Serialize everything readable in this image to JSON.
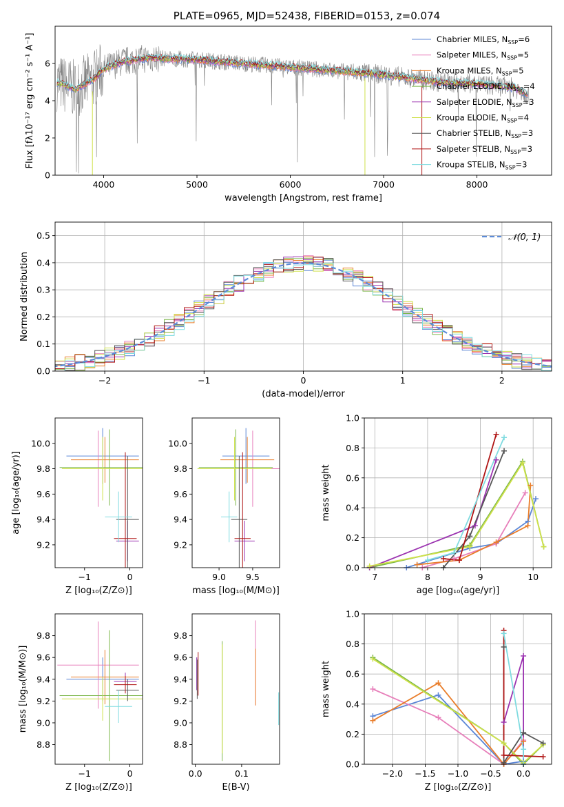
{
  "colors": {
    "Chabrier MILES": "#5b86d6",
    "Salpeter MILES": "#e77fba",
    "Kroupa MILES": "#e97d2a",
    "Chabrier ELODIE": "#7ab648",
    "Salpeter ELODIE": "#9b33b0",
    "Kroupa ELODIE": "#cfe14a",
    "Chabrier STELIB": "#555555",
    "Salpeter STELIB": "#b01515",
    "Kroupa STELIB": "#7fdbe0",
    "data": "#7f7f7f",
    "normal": "#5b8bd8"
  },
  "chart_data": [
    {
      "id": "spectrum",
      "type": "line",
      "title": "PLATE=0965, MJD=52438, FIBERID=0153, z=0.074",
      "xlabel": "wavelength [Angstrom, rest frame]",
      "ylabel": "Flux [fλ10⁻¹⁷ erg cm⁻² s⁻¹ A⁻¹]",
      "xlim": [
        3480,
        8800
      ],
      "ylim": [
        0,
        8
      ],
      "xticks": [
        4000,
        5000,
        6000,
        7000,
        8000
      ],
      "yticks": [
        0,
        2,
        4,
        6
      ],
      "legend_position": "upper right",
      "legend": [
        {
          "name": "Chabrier MILES",
          "nssp": "6"
        },
        {
          "name": "Salpeter MILES",
          "nssp": "5"
        },
        {
          "name": "Kroupa MILES",
          "nssp": "5"
        },
        {
          "name": "Chabrier ELODIE",
          "nssp": "4"
        },
        {
          "name": "Salpeter ELODIE",
          "nssp": "3"
        },
        {
          "name": "Kroupa ELODIE",
          "nssp": "4"
        },
        {
          "name": "Chabrier STELIB",
          "nssp": "3"
        },
        {
          "name": "Salpeter STELIB",
          "nssp": "3"
        },
        {
          "name": "Kroupa STELIB",
          "nssp": "3"
        }
      ],
      "continuum": {
        "x": [
          3500,
          3700,
          3900,
          4000,
          4200,
          4500,
          5000,
          5500,
          6000,
          6500,
          7000,
          7300,
          7600,
          8000,
          8400,
          8550
        ],
        "y": [
          5.0,
          4.6,
          5.2,
          5.7,
          6.1,
          6.3,
          6.2,
          6.0,
          5.8,
          5.6,
          5.4,
          5.2,
          5.0,
          4.9,
          4.7,
          4.3
        ]
      }
    },
    {
      "id": "residuals",
      "type": "histogram",
      "xlabel": "(data-model)/error",
      "ylabel": "Normed distribution",
      "xlim": [
        -2.5,
        2.5
      ],
      "ylim": [
        0,
        0.55
      ],
      "xticks": [
        -2,
        -1,
        0,
        1,
        2
      ],
      "yticks": [
        0.0,
        0.1,
        0.2,
        0.3,
        0.4,
        0.5
      ],
      "grid": true,
      "legend_position": "upper right",
      "normal_label": "𝒩(0, 1)"
    },
    {
      "id": "age_vs_Z",
      "type": "errorbar",
      "xlabel": "Z [log₁₀(Z/Z⊙)]",
      "ylabel": "age  [log₁₀(age/yr)]",
      "xlim": [
        -1.65,
        0.28
      ],
      "ylim": [
        9.02,
        10.2
      ],
      "xticks": [
        -1,
        0
      ],
      "yticks": [
        9.2,
        9.4,
        9.6,
        9.8,
        10.0
      ],
      "points": [
        {
          "series": "Chabrier MILES",
          "x": -0.6,
          "y": 9.9,
          "xerr": 0.8,
          "yerr": 0.22
        },
        {
          "series": "Salpeter MILES",
          "x": -0.7,
          "y": 9.8,
          "xerr": 0.4,
          "yerr": 0.3
        },
        {
          "series": "Kroupa MILES",
          "x": -0.55,
          "y": 9.87,
          "xerr": 0.75,
          "yerr": 0.18
        },
        {
          "series": "Chabrier ELODIE",
          "x": -0.45,
          "y": 9.81,
          "xerr": 1.1,
          "yerr": 0.3
        },
        {
          "series": "Salpeter ELODIE",
          "x": -0.05,
          "y": 9.23,
          "xerr": 0.25,
          "yerr": 0.16
        },
        {
          "series": "Kroupa ELODIE",
          "x": -0.6,
          "y": 9.8,
          "xerr": 0.9,
          "yerr": 0.25
        },
        {
          "series": "Chabrier STELIB",
          "x": -0.05,
          "y": 9.4,
          "xerr": 0.25,
          "yerr": 0.5
        },
        {
          "series": "Salpeter STELIB",
          "x": -0.1,
          "y": 9.25,
          "xerr": 0.25,
          "yerr": 0.68
        },
        {
          "series": "Kroupa STELIB",
          "x": -0.25,
          "y": 9.42,
          "xerr": 0.3,
          "yerr": 0.2
        }
      ]
    },
    {
      "id": "age_vs_mass",
      "type": "errorbar",
      "xlabel": "mass [log₁₀(M/M⊙)]",
      "ylabel": "",
      "xlim": [
        8.6,
        9.9
      ],
      "ylim": [
        9.02,
        10.2
      ],
      "xticks": [
        9.0,
        9.5
      ],
      "yticks": [
        9.2,
        9.4,
        9.6,
        9.8,
        10.0
      ],
      "points": [
        {
          "series": "Chabrier MILES",
          "x": 9.4,
          "y": 9.9,
          "xerr": 0.35,
          "yerr": 0.22
        },
        {
          "series": "Salpeter MILES",
          "x": 9.5,
          "y": 9.8,
          "xerr": 0.4,
          "yerr": 0.3
        },
        {
          "series": "Kroupa MILES",
          "x": 9.42,
          "y": 9.87,
          "xerr": 0.4,
          "yerr": 0.18
        },
        {
          "series": "Chabrier ELODIE",
          "x": 9.25,
          "y": 9.81,
          "xerr": 0.55,
          "yerr": 0.3
        },
        {
          "series": "Salpeter ELODIE",
          "x": 9.38,
          "y": 9.23,
          "xerr": 0.15,
          "yerr": 0.16
        },
        {
          "series": "Kroupa ELODIE",
          "x": 9.23,
          "y": 9.8,
          "xerr": 0.55,
          "yerr": 0.25
        },
        {
          "series": "Chabrier STELIB",
          "x": 9.3,
          "y": 9.4,
          "xerr": 0.12,
          "yerr": 0.5
        },
        {
          "series": "Salpeter STELIB",
          "x": 9.35,
          "y": 9.25,
          "xerr": 0.12,
          "yerr": 0.68
        },
        {
          "series": "Kroupa STELIB",
          "x": 9.15,
          "y": 9.42,
          "xerr": 0.12,
          "yerr": 0.2
        }
      ]
    },
    {
      "id": "weight_vs_age",
      "type": "line",
      "xlabel": "age  [log₁₀(age/yr)]",
      "ylabel": "mass weight",
      "xlim": [
        6.8,
        10.35
      ],
      "ylim": [
        0,
        1
      ],
      "xticks": [
        7,
        8,
        9,
        10
      ],
      "yticks": [
        0.0,
        0.2,
        0.4,
        0.6,
        0.8,
        1.0
      ],
      "grid": true,
      "series": [
        {
          "name": "Chabrier MILES",
          "x": [
            7.6,
            8.8,
            9.3,
            9.9,
            10.05
          ],
          "y": [
            0.0,
            0.13,
            0.16,
            0.31,
            0.46
          ]
        },
        {
          "name": "Salpeter MILES",
          "x": [
            7.9,
            8.5,
            9.3,
            9.85
          ],
          "y": [
            0.0,
            0.06,
            0.16,
            0.5
          ]
        },
        {
          "name": "Kroupa MILES",
          "x": [
            7.8,
            8.6,
            9.3,
            9.9,
            9.95
          ],
          "y": [
            0.02,
            0.05,
            0.17,
            0.28,
            0.55
          ]
        },
        {
          "name": "Chabrier ELODIE",
          "x": [
            6.9,
            8.8,
            9.8,
            10.2
          ],
          "y": [
            0.0,
            0.15,
            0.71,
            0.14
          ]
        },
        {
          "name": "Salpeter ELODIE",
          "x": [
            6.9,
            8.9,
            9.3
          ],
          "y": [
            0.0,
            0.28,
            0.72
          ]
        },
        {
          "name": "Kroupa ELODIE",
          "x": [
            6.9,
            8.8,
            9.8,
            10.2
          ],
          "y": [
            0.01,
            0.14,
            0.7,
            0.14
          ]
        },
        {
          "name": "Chabrier STELIB",
          "x": [
            8.3,
            8.8,
            9.45
          ],
          "y": [
            0.0,
            0.21,
            0.78
          ]
        },
        {
          "name": "Salpeter STELIB",
          "x": [
            8.3,
            8.6,
            9.3
          ],
          "y": [
            0.06,
            0.05,
            0.89
          ]
        },
        {
          "name": "Kroupa STELIB",
          "x": [
            8.0,
            8.5,
            9.45
          ],
          "y": [
            0.05,
            0.1,
            0.87
          ]
        }
      ]
    },
    {
      "id": "mass_vs_Z",
      "type": "errorbar",
      "xlabel": "Z [log₁₀(Z/Z⊙)]",
      "ylabel": "mass [log₁₀(M/M⊙)]",
      "xlim": [
        -1.65,
        0.28
      ],
      "ylim": [
        8.62,
        10.0
      ],
      "xticks": [
        -1,
        0
      ],
      "yticks": [
        8.8,
        9.0,
        9.2,
        9.4,
        9.6,
        9.8
      ],
      "points": [
        {
          "series": "Chabrier MILES",
          "x": -0.6,
          "y": 9.4,
          "xerr": 0.8,
          "yerr": 0.2
        },
        {
          "series": "Salpeter MILES",
          "x": -0.7,
          "y": 9.53,
          "xerr": 0.9,
          "yerr": 0.4
        },
        {
          "series": "Kroupa MILES",
          "x": -0.55,
          "y": 9.42,
          "xerr": 0.75,
          "yerr": 0.25
        },
        {
          "series": "Chabrier ELODIE",
          "x": -0.45,
          "y": 9.25,
          "xerr": 1.1,
          "yerr": 0.6
        },
        {
          "series": "Salpeter ELODIE",
          "x": -0.1,
          "y": 9.38,
          "xerr": 0.25,
          "yerr": 0.08
        },
        {
          "series": "Kroupa ELODIE",
          "x": -0.6,
          "y": 9.22,
          "xerr": 0.9,
          "yerr": 0.2
        },
        {
          "series": "Chabrier STELIB",
          "x": -0.05,
          "y": 9.3,
          "xerr": 0.25,
          "yerr": 0.1
        },
        {
          "series": "Salpeter STELIB",
          "x": -0.1,
          "y": 9.35,
          "xerr": 0.25,
          "yerr": 0.08
        },
        {
          "series": "Kroupa STELIB",
          "x": -0.25,
          "y": 9.15,
          "xerr": 0.3,
          "yerr": 0.15
        }
      ]
    },
    {
      "id": "mass_vs_ebv",
      "type": "errorbar",
      "xlabel": "E(B-V)",
      "ylabel": "",
      "xlim": [
        -0.007,
        0.182
      ],
      "ylim": [
        8.62,
        10.0
      ],
      "xticks": [
        0.0,
        0.1
      ],
      "yticks": [
        8.8,
        9.0,
        9.2,
        9.4,
        9.6,
        9.8
      ],
      "points": [
        {
          "series": "Chabrier MILES",
          "x": 0.003,
          "y": 9.45,
          "xerr": 0,
          "yerr": 0.15
        },
        {
          "series": "Salpeter MILES",
          "x": 0.13,
          "y": 9.55,
          "xerr": 0,
          "yerr": 0.39
        },
        {
          "series": "Kroupa MILES",
          "x": 0.13,
          "y": 9.42,
          "xerr": 0,
          "yerr": 0.26
        },
        {
          "series": "Chabrier ELODIE",
          "x": 0.058,
          "y": 9.2,
          "xerr": 0,
          "yerr": 0.55
        },
        {
          "series": "Salpeter ELODIE",
          "x": 0.003,
          "y": 9.45,
          "xerr": 0,
          "yerr": 0.15
        },
        {
          "series": "Kroupa ELODIE",
          "x": 0.058,
          "y": 9.22,
          "xerr": 0,
          "yerr": 0.5
        },
        {
          "series": "Chabrier STELIB",
          "x": 0.004,
          "y": 9.4,
          "xerr": 0,
          "yerr": 0.18
        },
        {
          "series": "Salpeter STELIB",
          "x": 0.006,
          "y": 9.45,
          "xerr": 0,
          "yerr": 0.2
        },
        {
          "series": "Kroupa STELIB",
          "x": 0.18,
          "y": 9.13,
          "xerr": 0,
          "yerr": 0.15
        }
      ]
    },
    {
      "id": "weight_vs_Z",
      "type": "line",
      "xlabel": "Z [log₁₀(Z/Z⊙)]",
      "ylabel": "mass weight",
      "xlim": [
        -2.43,
        0.43
      ],
      "ylim": [
        0,
        1
      ],
      "xticks": [
        -2.0,
        -1.5,
        -1.0,
        -0.5,
        0.0
      ],
      "yticks": [
        0.0,
        0.2,
        0.4,
        0.6,
        0.8,
        1.0
      ],
      "grid": true,
      "series": [
        {
          "name": "Chabrier MILES",
          "x": [
            -2.3,
            -1.3,
            -0.3,
            0.0
          ],
          "y": [
            0.32,
            0.46,
            0.0,
            0.02
          ]
        },
        {
          "name": "Salpeter MILES",
          "x": [
            -2.3,
            -1.3,
            -0.3,
            0.0
          ],
          "y": [
            0.5,
            0.31,
            0.0,
            0.16
          ]
        },
        {
          "name": "Kroupa MILES",
          "x": [
            -2.3,
            -1.3,
            -0.3,
            0.0
          ],
          "y": [
            0.29,
            0.54,
            0.0,
            0.15
          ]
        },
        {
          "name": "Chabrier ELODIE",
          "x": [
            -2.3,
            -0.3,
            0.0,
            0.3
          ],
          "y": [
            0.71,
            0.14,
            0.0,
            0.13
          ]
        },
        {
          "name": "Salpeter ELODIE",
          "x": [
            -0.3,
            0.0,
            0.0
          ],
          "y": [
            0.28,
            0.72,
            0.0
          ]
        },
        {
          "name": "Kroupa ELODIE",
          "x": [
            -2.3,
            -0.3,
            0.0,
            0.3
          ],
          "y": [
            0.7,
            0.14,
            0.01,
            0.13
          ]
        },
        {
          "name": "Chabrier STELIB",
          "x": [
            -0.3,
            -0.3,
            0.0,
            0.3
          ],
          "y": [
            0.78,
            0.01,
            0.21,
            0.14
          ]
        },
        {
          "name": "Salpeter STELIB",
          "x": [
            -0.3,
            -0.3,
            0.3
          ],
          "y": [
            0.89,
            0.06,
            0.05
          ]
        },
        {
          "name": "Kroupa STELIB",
          "x": [
            -0.3,
            0.0,
            0.0
          ],
          "y": [
            0.87,
            0.1,
            0.0
          ]
        }
      ]
    }
  ]
}
